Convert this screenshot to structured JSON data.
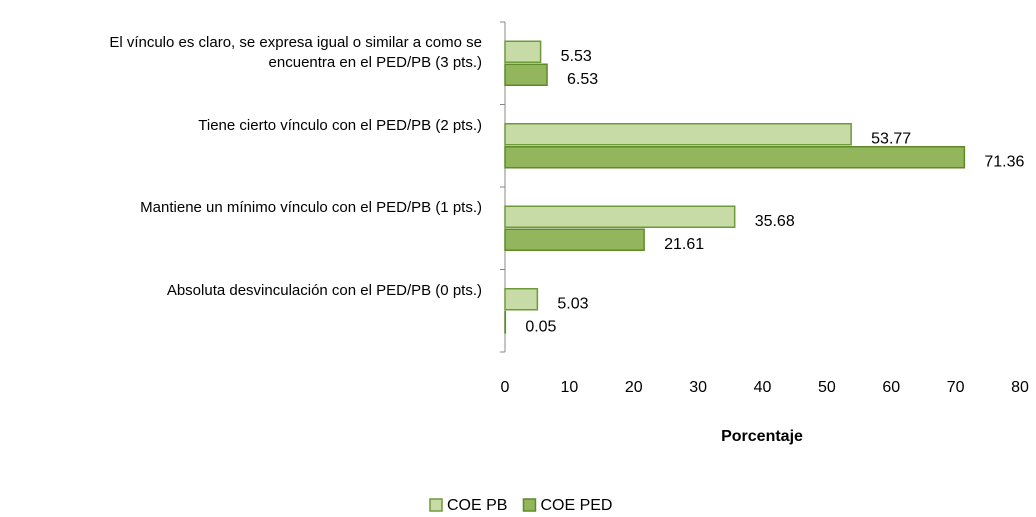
{
  "chart_data": {
    "type": "bar",
    "orientation": "horizontal",
    "x_label": "Porcentaje",
    "categories": [
      "El vínculo es claro, se expresa igual o similar a como se encuentra en el PED/PB (3 pts.)",
      "Tiene cierto vínculo con el PED/PB (2 pts.)",
      "Mantiene un mínimo vínculo con el PED/PB (1 pts.)",
      "Absoluta desvinculación con el PED/PB (0 pts.)"
    ],
    "series": [
      {
        "name": "COE PB",
        "color": "#c6dba6",
        "values": [
          5.53,
          53.77,
          35.68,
          5.03
        ]
      },
      {
        "name": "COE PED",
        "color": "#93b55b",
        "values": [
          6.53,
          71.36,
          21.61,
          0.05
        ]
      }
    ],
    "xlim": [
      0,
      80
    ],
    "xticks": [
      0,
      10,
      20,
      30,
      40,
      50,
      60,
      70,
      80
    ],
    "legend": "bottom"
  }
}
